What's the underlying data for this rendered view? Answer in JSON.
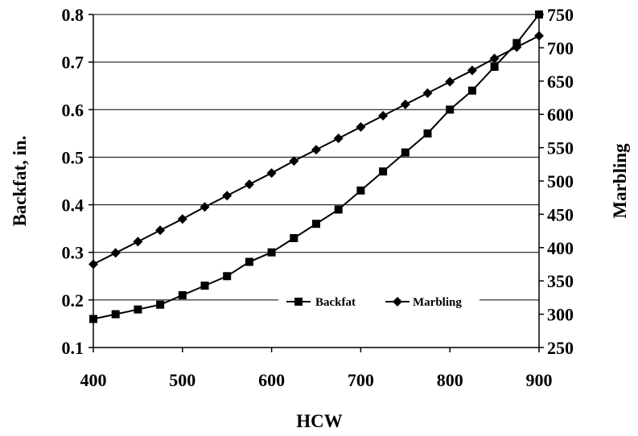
{
  "chart_data": {
    "type": "line",
    "title": "",
    "xlabel": "HCW",
    "ylabel_left": "Backfat, in.",
    "ylabel_right": "Marbling",
    "xlim": [
      400,
      900
    ],
    "ylim_left": [
      0.1,
      0.8
    ],
    "ylim_right": [
      250,
      750
    ],
    "x_ticks": [
      400,
      500,
      600,
      700,
      800,
      900
    ],
    "y_left_ticks": [
      "0.1",
      "0.2",
      "0.3",
      "0.4",
      "0.5",
      "0.6",
      "0.7",
      "0.8"
    ],
    "y_right_ticks": [
      "250",
      "300",
      "350",
      "400",
      "450",
      "500",
      "550",
      "600",
      "650",
      "700",
      "750"
    ],
    "grid": "horizontal",
    "legend_position": "bottom-center",
    "x": [
      400,
      425,
      450,
      475,
      500,
      525,
      550,
      575,
      600,
      625,
      650,
      675,
      700,
      725,
      750,
      775,
      800,
      825,
      850,
      875,
      900
    ],
    "series": [
      {
        "name": "Backfat",
        "axis": "left",
        "marker": "square",
        "values": [
          0.16,
          0.17,
          0.18,
          0.19,
          0.21,
          0.23,
          0.25,
          0.28,
          0.3,
          0.33,
          0.36,
          0.39,
          0.43,
          0.47,
          0.51,
          0.55,
          0.6,
          0.64,
          0.69,
          0.74,
          0.8
        ]
      },
      {
        "name": "Marbling",
        "axis": "right",
        "marker": "diamond",
        "values": [
          375,
          392,
          409,
          426,
          443,
          461,
          478,
          495,
          512,
          530,
          547,
          564,
          581,
          598,
          615,
          632,
          649,
          666,
          684,
          701,
          718
        ]
      }
    ],
    "color": "#000000"
  }
}
